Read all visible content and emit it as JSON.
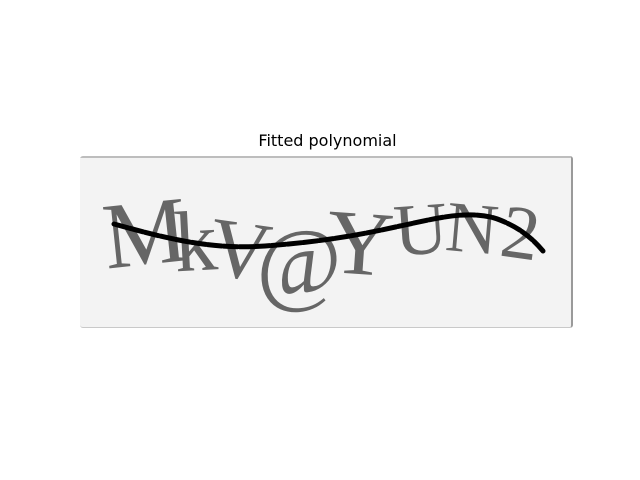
{
  "figure": {
    "title": "Fitted polynomial"
  },
  "captcha": {
    "characters": [
      "M",
      "k",
      "V",
      "@",
      "Y",
      "U",
      "N",
      "2"
    ]
  },
  "colors": {
    "background": "#ffffff",
    "captcha_background": "#f3f3f3",
    "captcha_text": "#5f5f5f",
    "curve": "#000000"
  }
}
